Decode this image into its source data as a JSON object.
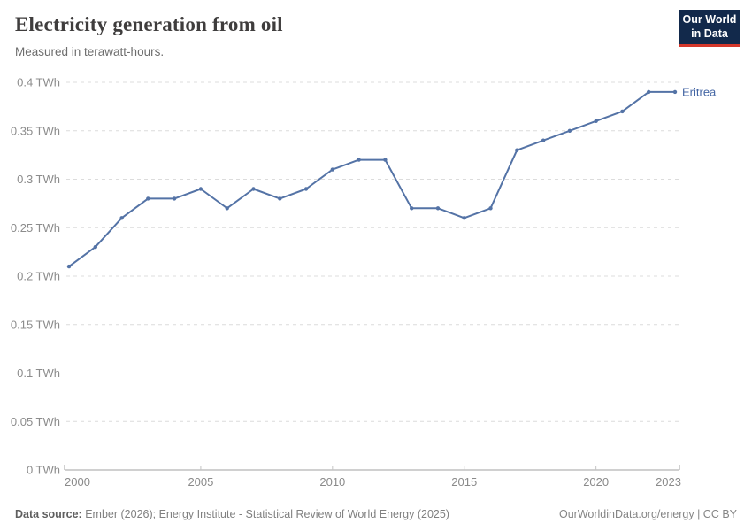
{
  "header": {
    "title": "Electricity generation from oil",
    "subtitle": "Measured in terawatt-hours."
  },
  "logo": {
    "line1": "Our World",
    "line2": "in Data",
    "bg_color": "#12294b",
    "accent_color": "#d4372b"
  },
  "chart_data": {
    "type": "line",
    "title": "Electricity generation from oil",
    "subtitle": "Measured in terawatt-hours.",
    "unit": "TWh",
    "x": [
      2000,
      2001,
      2002,
      2003,
      2004,
      2005,
      2006,
      2007,
      2008,
      2009,
      2010,
      2011,
      2012,
      2013,
      2014,
      2015,
      2016,
      2017,
      2018,
      2019,
      2020,
      2021,
      2022,
      2023
    ],
    "series": [
      {
        "name": "Eritrea",
        "values": [
          0.21,
          0.23,
          0.26,
          0.28,
          0.28,
          0.29,
          0.27,
          0.29,
          0.28,
          0.29,
          0.31,
          0.32,
          0.32,
          0.27,
          0.27,
          0.26,
          0.27,
          0.33,
          0.34,
          0.35,
          0.36,
          0.37,
          0.39,
          0.39
        ]
      }
    ],
    "ylim": [
      0,
      0.4
    ],
    "yticks": [
      {
        "v": 0.0,
        "label": "0 TWh"
      },
      {
        "v": 0.05,
        "label": "0.05 TWh"
      },
      {
        "v": 0.1,
        "label": "0.1 TWh"
      },
      {
        "v": 0.15,
        "label": "0.15 TWh"
      },
      {
        "v": 0.2,
        "label": "0.2 TWh"
      },
      {
        "v": 0.25,
        "label": "0.25 TWh"
      },
      {
        "v": 0.3,
        "label": "0.3 TWh"
      },
      {
        "v": 0.35,
        "label": "0.35 TWh"
      },
      {
        "v": 0.4,
        "label": "0.4 TWh"
      }
    ],
    "xticks": [
      {
        "v": 2000,
        "label": "2000"
      },
      {
        "v": 2005,
        "label": "2005"
      },
      {
        "v": 2010,
        "label": "2010"
      },
      {
        "v": 2015,
        "label": "2015"
      },
      {
        "v": 2020,
        "label": "2020"
      },
      {
        "v": 2023,
        "label": "2023"
      }
    ],
    "grid": true,
    "legend_position": "end-of-line-label",
    "colors": {
      "line": "#5473a6",
      "marker": "#5473a6",
      "entity_label": "#4466a4",
      "gridline": "#dcdcdc",
      "axis_line": "#a1a1a1",
      "year_tick": "#c4c4c4",
      "ytick_text": "#8c8c8c",
      "xtick_text": "#8a8a8a"
    }
  },
  "footer": {
    "source_label": "Data source:",
    "source_text": " Ember (2026); Energy Institute - Statistical Review of World Energy (2025)",
    "right_text": "OurWorldinData.org/energy | CC BY"
  }
}
